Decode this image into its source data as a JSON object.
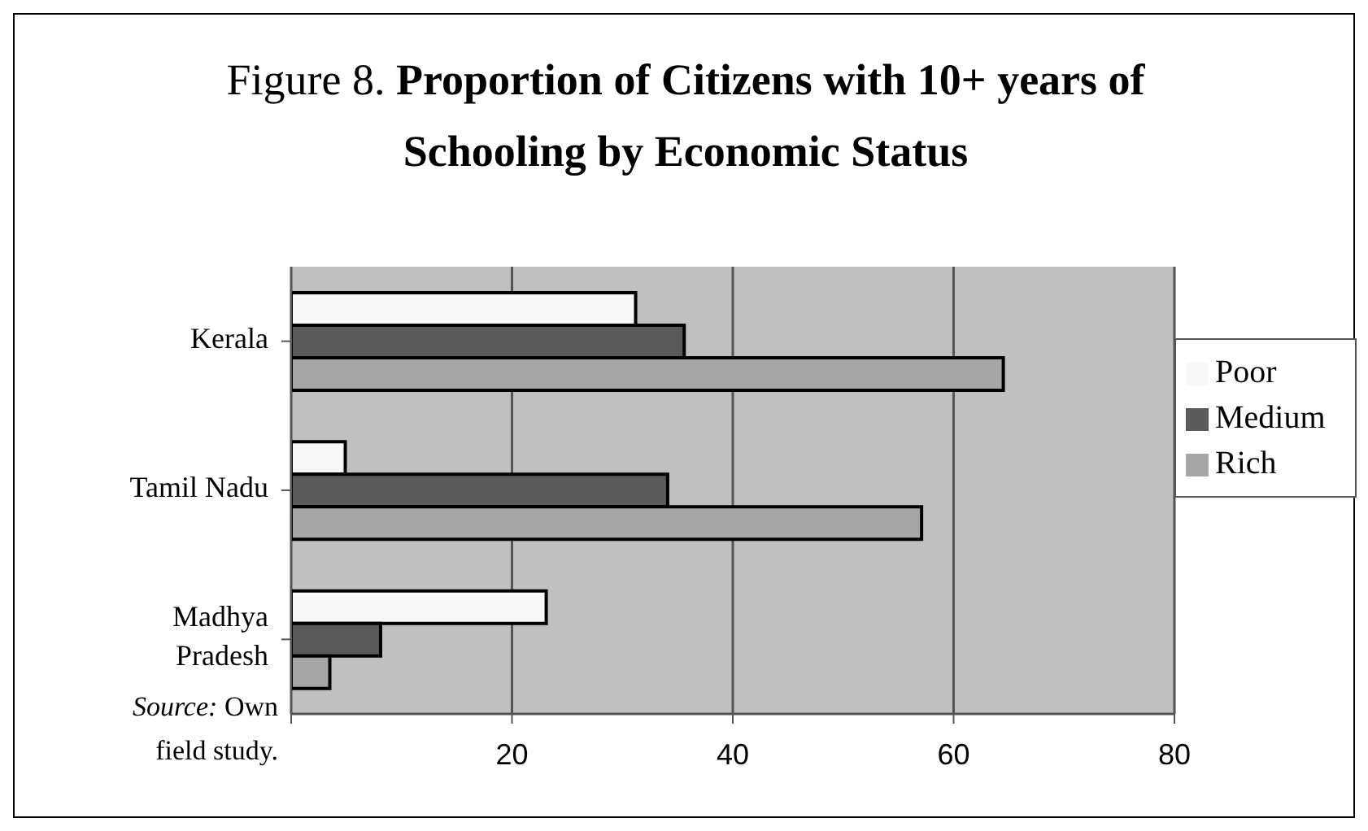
{
  "chart_data": {
    "type": "bar",
    "orientation": "horizontal",
    "title": "Figure 8. Proportion of Citizens with 10+ years of Schooling by Economic Status",
    "categories": [
      "Kerala",
      "Tamil Nadu",
      "Madhya Pradesh"
    ],
    "series": [
      {
        "name": "Poor",
        "color": "#f8f8f8",
        "values": [
          31.2,
          4.9,
          23.1
        ]
      },
      {
        "name": "Medium",
        "color": "#5a5a5a",
        "values": [
          35.6,
          34.1,
          8.1
        ]
      },
      {
        "name": "Rich",
        "color": "#a6a6a6",
        "values": [
          64.5,
          57.1,
          3.5
        ]
      }
    ],
    "xlim": [
      0,
      80
    ],
    "xticks": [
      {
        "value": 0,
        "label": null
      },
      20,
      40,
      60,
      80
    ],
    "grid": "x",
    "legend": "right",
    "annotations": [
      "Source: Own field study."
    ]
  }
}
